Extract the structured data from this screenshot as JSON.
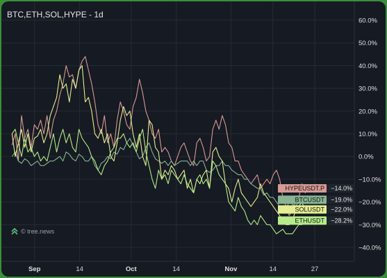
{
  "header": {
    "title": "BTC,ETH,SOL,HYPE - 1d"
  },
  "watermark": {
    "text": "© tree.news",
    "icon": "tree-news-logo-icon"
  },
  "colors": {
    "background": "#161a22",
    "frame": "#3a8f3a",
    "grid": "#262b34",
    "HYPEUSDT.P": "#d79a95",
    "BTCUSDT": "#88b494",
    "SOLUSDT": "#e3ef92",
    "ETHUSDT": "#b6ec8c"
  },
  "chart_data": {
    "type": "line",
    "title": "BTC,ETH,SOL,HYPE - 1d",
    "y_ticks": [
      "60.0%",
      "50.0%",
      "40.0%",
      "30.0%",
      "20.0%",
      "10.0%",
      "0.0%",
      "−10.0%",
      "−20.0%",
      "−30.0%",
      "−40.0%"
    ],
    "ylim": [
      -45,
      65
    ],
    "x_ticks": [
      {
        "label": "Sep",
        "day": 9,
        "major": true
      },
      {
        "label": "14",
        "day": 23,
        "major": false
      },
      {
        "label": "Oct",
        "day": 39,
        "major": true
      },
      {
        "label": "14",
        "day": 53,
        "major": false
      },
      {
        "label": "Nov",
        "day": 70,
        "major": true
      },
      {
        "label": "14",
        "day": 83,
        "major": false
      },
      {
        "label": "27",
        "day": 96,
        "major": false
      }
    ],
    "x_range": [
      0,
      107
    ],
    "grid": true,
    "series": [
      {
        "name": "HYPEUSDT.P",
        "last_value": "−14.0%",
        "values": [
          5,
          10,
          -2,
          18,
          8,
          12,
          4,
          14,
          12,
          16,
          10,
          18,
          8,
          16,
          20,
          27,
          32,
          40,
          35,
          36,
          30,
          38,
          42,
          44,
          38,
          32,
          24,
          14,
          10,
          18,
          6,
          10,
          4,
          16,
          24,
          20,
          14,
          12,
          22,
          26,
          34,
          28,
          20,
          16,
          10,
          8,
          12,
          2,
          4,
          2,
          -2,
          -4,
          0,
          4,
          6,
          2,
          -2,
          -4,
          6,
          8,
          4,
          -2,
          0,
          12,
          16,
          12,
          18,
          14,
          6,
          4,
          -2,
          -2,
          -6,
          -8,
          -10,
          -12,
          -10,
          -8,
          -14,
          -12,
          -10,
          -12,
          -8,
          -6,
          -10,
          -18,
          -22,
          -26,
          -24,
          -20,
          -18,
          -12,
          -16,
          -14
        ]
      },
      {
        "name": "BTCUSDT",
        "last_value": "−19.0%",
        "values": [
          0,
          2,
          -2,
          -3,
          -1,
          -2,
          -4,
          -3,
          -2,
          -4,
          -4,
          -3,
          -2,
          -2,
          -1,
          0,
          -2,
          2,
          1,
          -1,
          -2,
          1,
          0,
          -2,
          -2,
          0,
          -4,
          -6,
          -3,
          -2,
          0,
          -1,
          2,
          1,
          4,
          3,
          6,
          8,
          5,
          2,
          -1,
          0,
          4,
          6,
          2,
          -1,
          -2,
          -3,
          -2,
          -4,
          -2,
          -4,
          -3,
          -2,
          -2,
          -2,
          -4,
          -2,
          -4,
          -2,
          -2,
          -6,
          -7,
          -6,
          -4,
          -4,
          -2,
          -4,
          -4,
          -6,
          -7,
          -8,
          -8,
          -10,
          -10,
          -12,
          -13,
          -14,
          -14,
          -17,
          -16,
          -18,
          -18,
          -20,
          -22,
          -24,
          -23,
          -20,
          -21,
          -22,
          -20,
          -18,
          -20,
          -19
        ]
      },
      {
        "name": "SOLUSDT",
        "last_value": "−22.0%",
        "values": [
          10,
          0,
          6,
          12,
          4,
          10,
          2,
          8,
          9,
          12,
          6,
          10,
          18,
          22,
          26,
          36,
          30,
          32,
          24,
          34,
          30,
          38,
          40,
          24,
          26,
          20,
          10,
          8,
          12,
          6,
          10,
          0,
          -2,
          6,
          16,
          22,
          18,
          20,
          10,
          4,
          10,
          0,
          -4,
          16,
          14,
          4,
          2,
          -10,
          -6,
          -8,
          -4,
          -6,
          -10,
          -8,
          -6,
          -14,
          -10,
          -16,
          -10,
          -12,
          -8,
          -6,
          -14,
          2,
          4,
          0,
          -2,
          -12,
          -14,
          -20,
          -14,
          -10,
          -16,
          -18,
          -20,
          -22,
          -20,
          -18,
          -12,
          -16,
          -18,
          -20,
          -22,
          -24,
          -26,
          -28,
          -30,
          -30,
          -28,
          -24,
          -22,
          -20,
          -24,
          -22
        ]
      },
      {
        "name": "ETHUSDT",
        "last_value": "−28.2%",
        "values": [
          10,
          12,
          6,
          0,
          8,
          2,
          4,
          0,
          2,
          -2,
          0,
          -2,
          4,
          10,
          2,
          8,
          12,
          6,
          10,
          4,
          2,
          12,
          8,
          6,
          4,
          0,
          -2,
          -6,
          -8,
          -4,
          -2,
          2,
          4,
          8,
          8,
          10,
          6,
          4,
          6,
          2,
          8,
          12,
          2,
          -4,
          -10,
          -14,
          -6,
          -10,
          -8,
          -12,
          -6,
          -8,
          -10,
          -12,
          -8,
          -12,
          -14,
          -16,
          -10,
          -8,
          -12,
          -10,
          -14,
          -2,
          -4,
          -8,
          -10,
          -12,
          -20,
          -22,
          -24,
          -18,
          -22,
          -24,
          -28,
          -30,
          -28,
          -30,
          -26,
          -28,
          -30,
          -30,
          -32,
          -34,
          -33,
          -32,
          -34,
          -34,
          -34,
          -32,
          -30,
          -30,
          -28,
          -28
        ]
      }
    ]
  }
}
